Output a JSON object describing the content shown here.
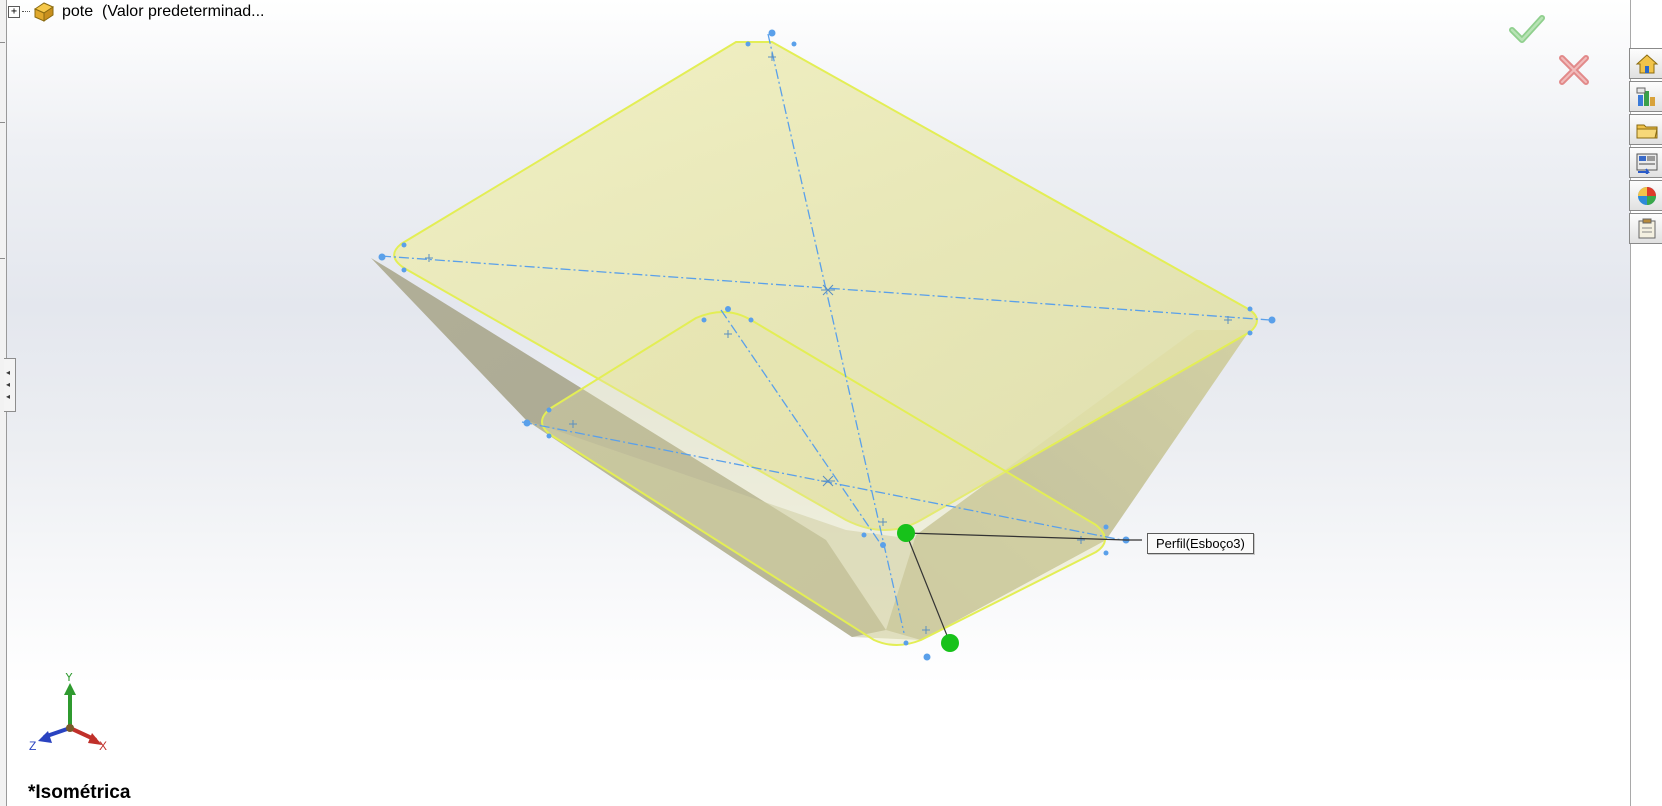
{
  "feature_tree": {
    "expander": "+",
    "part_label": "pote  (Valor predeterminad..."
  },
  "viewport": {
    "profile_callout": "Perfil(Esboço3)",
    "view_orientation": "*Isométrica"
  },
  "triad": {
    "y_label": "Y",
    "z_label": "Z",
    "x_label": "X"
  },
  "confirmation_corner": {
    "ok_icon": "check-icon",
    "cancel_icon": "close-icon"
  },
  "task_pane": {
    "tabs": [
      "home-icon",
      "resources-icon",
      "design-library-icon",
      "file-explorer-icon",
      "appearances-icon",
      "custom-properties-icon"
    ]
  },
  "colors": {
    "model_face_top": "#eceab2",
    "model_face_side": "#b5b39a",
    "edge_highlight": "#e3ee55",
    "sketch_blue": "#5aa0ea",
    "handle_green": "#17c21a",
    "ok_green": "#8fcf8d",
    "cancel_red": "#e28a8a",
    "axis_y": "#2f9a2f",
    "axis_x": "#c0302a",
    "axis_z": "#2a43c0"
  }
}
